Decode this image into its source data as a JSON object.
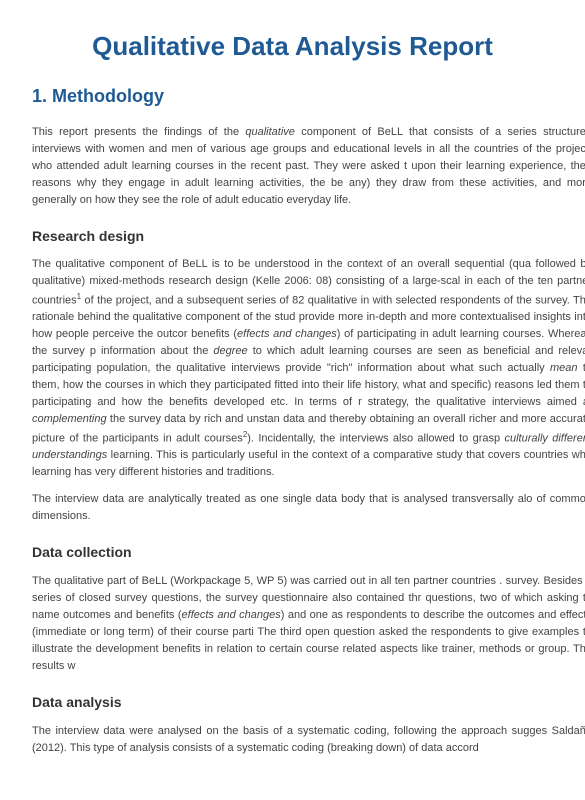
{
  "colors": {
    "heading": "#1f5a94",
    "body_text": "#444444",
    "subheading": "#333333",
    "background": "#ffffff"
  },
  "typography": {
    "title_fontsize": 26,
    "h1_fontsize": 18,
    "h2_fontsize": 14,
    "body_fontsize": 11,
    "font_family": "Arial"
  },
  "doc": {
    "title": "Qualitative Data Analysis Report",
    "section_number": "1. Methodology",
    "intro_p1_a": "This report presents the findings of the ",
    "intro_p1_ital": "qualitative",
    "intro_p1_b": " component of BeLL that consists of a series structured interviews with women and men of various age groups and educational levels in all the countries of the project, who attended adult learning courses in the recent past. They were asked t upon their learning experience, their reasons why they engage in adult learning activities, the be any) they draw from these activities, and more generally on how they see the role of adult educatio everyday life.",
    "h2_research": "Research design",
    "research_p1_a": "The qualitative component of BeLL is to be understood in the context of an overall sequential (qua followed by qualitative) mixed-methods research design (Kelle 2006:  08) consisting of a large-scal in each of the ten partner countries",
    "research_sup1": "1",
    "research_p1_b": " of the project, and a subsequent series of 82 qualitative in with selected respondents of the survey. The rationale behind the qualitative component of the stud provide more in-depth and more contextualised insights into how people perceive the outcor benefits (",
    "research_ital1": "effects and changes",
    "research_p1_c": ") of participating in adult learning courses. Whereas the survey p information about the ",
    "research_ital2": "degree",
    "research_p1_d": " to which adult learning courses are seen as beneficial and relevar participating population, the qualitative interviews provide \"rich\" information about what such actually ",
    "research_ital3": "mean",
    "research_p1_e": " to them, how the courses in which they participated fitted into their life history, what and specific) reasons led them to participating and how the benefits developed etc. In terms of r strategy, the qualitative interviews aimed at ",
    "research_ital4": "complementing",
    "research_p1_f": " the survey data by rich and unstan data and thereby obtaining an overall richer and more accurate picture of the participants in adult courses",
    "research_sup2": "2",
    "research_p1_g": "). Incidentally, the interviews also allowed to grasp ",
    "research_ital5": "culturally different understandings",
    "research_p1_h": " learning. This is particularly useful in the context of a comparative study that covers countries whe learning has very different histories and traditions.",
    "research_p2": "The interview data are analytically treated as one single data body that is analysed transversally alo of common dimensions.",
    "h2_collection": "Data collection",
    "collection_p1_a": "The qualitative part of BeLL (Workpackage 5, WP 5) was carried out in all ten partner countries . survey. Besides a series of closed survey questions, the survey questionnaire also contained thr questions, two of which asking to name outcomes and benefits (",
    "collection_ital1": "effects and changes",
    "collection_p1_b": ") and one as respondents to describe the outcomes and effects (immediate or long term) of their course parti The third open question asked the respondents to give examples to illustrate the development benefits in relation to certain course related aspects like trainer, methods or group. The results w",
    "h2_analysis": "Data analysis",
    "analysis_p1": "The interview data were analysed on the basis of a systematic coding, following the approach sugges Saldaña (2012). This type of analysis consists of a systematic coding (breaking down) of data accord"
  }
}
